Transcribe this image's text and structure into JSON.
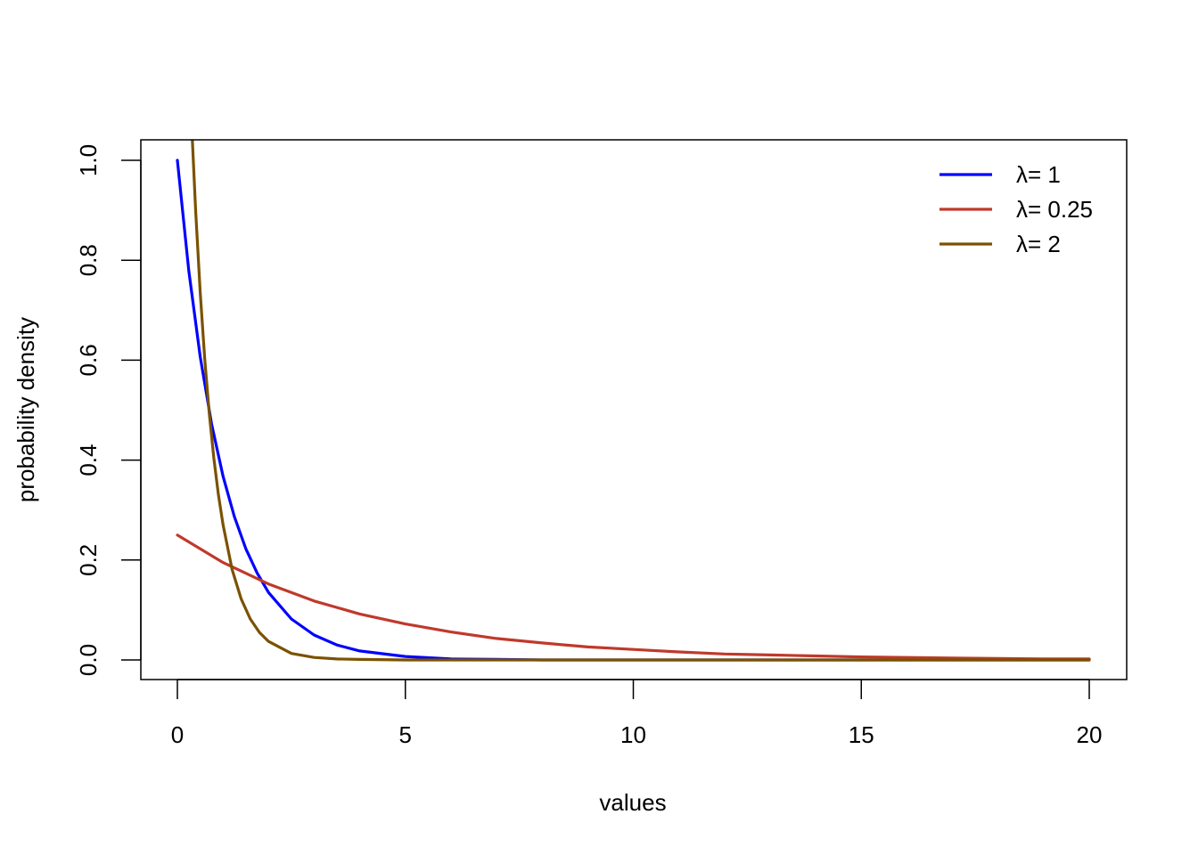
{
  "chart_data": {
    "type": "line",
    "title": "",
    "xlabel": "values",
    "ylabel": "probability density",
    "xlim": [
      0,
      20
    ],
    "ylim": [
      0,
      1
    ],
    "xticks": [
      "0",
      "5",
      "10",
      "15",
      "20"
    ],
    "yticks": [
      "0.0",
      "0.2",
      "0.4",
      "0.6",
      "0.8",
      "1.0"
    ],
    "grid": false,
    "legend_position": "top-right",
    "legend_frame": false,
    "series": [
      {
        "name": "λ= 1",
        "color": "#0000ff",
        "x": [
          0,
          0.25,
          0.5,
          0.75,
          1,
          1.25,
          1.5,
          1.75,
          2,
          2.5,
          3,
          3.5,
          4,
          5,
          6,
          7,
          8,
          10,
          12,
          14,
          16,
          18,
          20
        ],
        "y": [
          1,
          0.779,
          0.607,
          0.472,
          0.368,
          0.287,
          0.223,
          0.174,
          0.135,
          0.082,
          0.05,
          0.03,
          0.018,
          0.007,
          0.002,
          0.001,
          0,
          0,
          0,
          0,
          0,
          0,
          0
        ]
      },
      {
        "name": "λ= 0.25",
        "color": "#c0392b",
        "x": [
          0,
          1,
          2,
          3,
          4,
          5,
          6,
          7,
          8,
          9,
          10,
          11,
          12,
          13,
          14,
          15,
          16,
          17,
          18,
          19,
          20
        ],
        "y": [
          0.25,
          0.195,
          0.152,
          0.118,
          0.092,
          0.072,
          0.056,
          0.043,
          0.034,
          0.026,
          0.021,
          0.016,
          0.012,
          0.01,
          0.008,
          0.006,
          0.005,
          0.004,
          0.003,
          0.002,
          0.002
        ]
      },
      {
        "name": "λ= 2",
        "color": "#7a5200",
        "x": [
          0.3,
          0.4,
          0.5,
          0.6,
          0.7,
          0.8,
          0.9,
          1,
          1.2,
          1.4,
          1.6,
          1.8,
          2,
          2.5,
          3,
          3.5,
          4,
          5,
          6,
          8,
          10,
          15,
          20
        ],
        "y": [
          1.098,
          0.899,
          0.736,
          0.602,
          0.493,
          0.404,
          0.331,
          0.271,
          0.181,
          0.122,
          0.082,
          0.055,
          0.037,
          0.013,
          0.005,
          0.002,
          0.001,
          0,
          0,
          0,
          0,
          0,
          0
        ]
      }
    ]
  }
}
